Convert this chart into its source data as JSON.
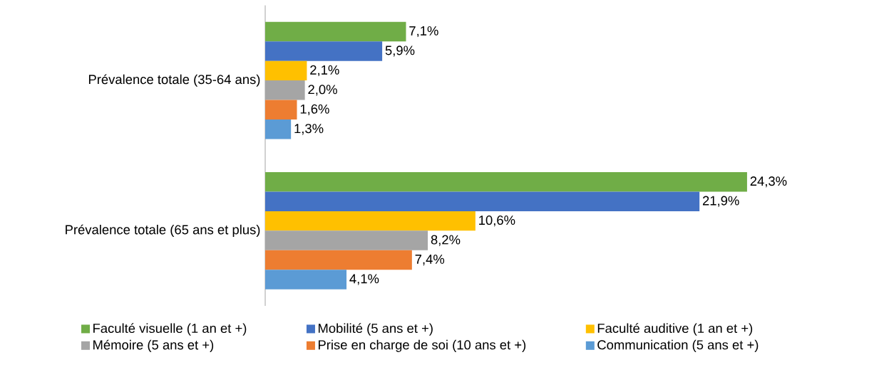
{
  "chart_data": {
    "type": "bar",
    "orientation": "horizontal",
    "legend": "bottom",
    "categories": [
      "Prévalence totale (35-64 ans)",
      "Prévalence totale (65 ans et plus)"
    ],
    "series": [
      {
        "name": "Faculté visuelle (1 an et +)",
        "color": "#70ad47",
        "values": [
          7.1,
          24.3
        ],
        "value_labels": [
          "7,1%",
          "24,3%"
        ]
      },
      {
        "name": "Mobilité (5 ans et +)",
        "color": "#4472c4",
        "values": [
          5.9,
          21.9
        ],
        "value_labels": [
          "5,9%",
          "21,9%"
        ]
      },
      {
        "name": "Faculté auditive (1 an et +)",
        "color": "#ffc000",
        "values": [
          2.1,
          10.6
        ],
        "value_labels": [
          "2,1%",
          "10,6%"
        ]
      },
      {
        "name": "Mémoire (5 ans et +)",
        "color": "#a5a5a5",
        "values": [
          2.0,
          8.2
        ],
        "value_labels": [
          "2,0%",
          "8,2%"
        ]
      },
      {
        "name": "Prise en charge de soi (10 ans et +)",
        "color": "#ed7d31",
        "values": [
          1.6,
          7.4
        ],
        "value_labels": [
          "1,6%",
          "7,4%"
        ]
      },
      {
        "name": "Communication (5 ans et +)",
        "color": "#5b9bd5",
        "values": [
          1.3,
          4.1
        ],
        "value_labels": [
          "1,3%",
          "4,1%"
        ]
      }
    ]
  }
}
